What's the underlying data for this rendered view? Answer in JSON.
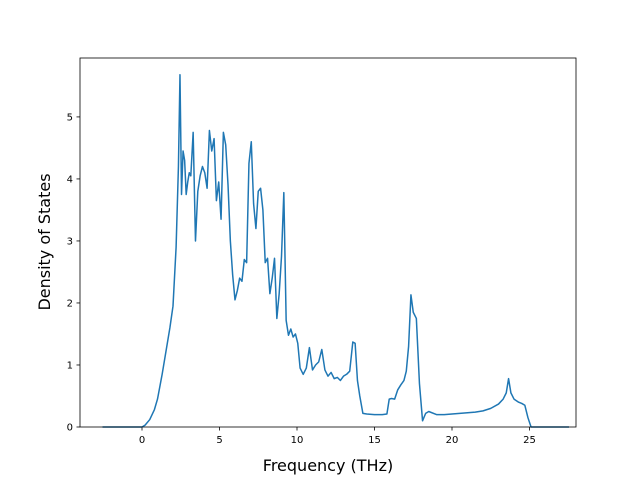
{
  "chart_data": {
    "type": "line",
    "title": "",
    "xlabel": "Frequency (THz)",
    "ylabel": "Density of States",
    "xlim": [
      -4,
      28
    ],
    "ylim": [
      0,
      5.95
    ],
    "xticks": [
      0,
      5,
      10,
      15,
      20,
      25
    ],
    "yticks": [
      0,
      1,
      2,
      3,
      4,
      5
    ],
    "grid": false,
    "legend": "none",
    "colors": {
      "line": "#1f77b4",
      "axes": "#000000",
      "background": "#ffffff"
    },
    "series": [
      {
        "x": [
          -2.5,
          -1.5,
          -0.5,
          0,
          0.2,
          0.5,
          0.8,
          1.0,
          1.3,
          1.6,
          1.8,
          2.0,
          2.2,
          2.35,
          2.45,
          2.55,
          2.65,
          2.75,
          2.85,
          2.95,
          3.05,
          3.15,
          3.3,
          3.45,
          3.6,
          3.75,
          3.9,
          4.05,
          4.2,
          4.35,
          4.5,
          4.65,
          4.8,
          4.95,
          5.1,
          5.25,
          5.4,
          5.55,
          5.7,
          5.85,
          6.0,
          6.15,
          6.3,
          6.45,
          6.6,
          6.75,
          6.9,
          7.05,
          7.2,
          7.35,
          7.5,
          7.65,
          7.8,
          7.95,
          8.1,
          8.25,
          8.4,
          8.55,
          8.7,
          8.85,
          9.0,
          9.15,
          9.3,
          9.45,
          9.6,
          9.75,
          9.9,
          10.05,
          10.2,
          10.4,
          10.6,
          10.8,
          11.0,
          11.2,
          11.4,
          11.6,
          11.8,
          12.0,
          12.2,
          12.4,
          12.6,
          12.8,
          13.0,
          13.2,
          13.4,
          13.6,
          13.75,
          13.9,
          14.05,
          14.25,
          14.5,
          15.0,
          15.5,
          15.8,
          15.95,
          16.1,
          16.3,
          16.5,
          16.7,
          16.9,
          17.05,
          17.2,
          17.35,
          17.5,
          17.7,
          17.9,
          18.1,
          18.3,
          18.5,
          19.0,
          19.5,
          20.0,
          20.5,
          21.0,
          21.5,
          22.0,
          22.5,
          23.0,
          23.3,
          23.5,
          23.65,
          23.8,
          24.0,
          24.3,
          24.5,
          24.7,
          24.9,
          25.1,
          26.0,
          27.5
        ],
        "y": [
          0,
          0,
          0,
          0,
          0.03,
          0.12,
          0.28,
          0.45,
          0.85,
          1.3,
          1.6,
          1.95,
          2.9,
          4.2,
          5.68,
          3.75,
          4.45,
          4.3,
          3.75,
          3.95,
          4.1,
          4.05,
          4.75,
          3.0,
          3.8,
          4.05,
          4.2,
          4.1,
          3.85,
          4.78,
          4.45,
          4.65,
          3.65,
          3.95,
          3.35,
          4.75,
          4.55,
          3.9,
          3.0,
          2.45,
          2.05,
          2.2,
          2.4,
          2.35,
          2.7,
          2.65,
          4.25,
          4.6,
          3.6,
          3.2,
          3.8,
          3.85,
          3.5,
          2.65,
          2.72,
          2.15,
          2.4,
          2.72,
          1.75,
          2.15,
          2.75,
          3.78,
          1.72,
          1.48,
          1.58,
          1.45,
          1.5,
          1.35,
          0.95,
          0.85,
          0.95,
          1.28,
          0.92,
          1.0,
          1.05,
          1.25,
          0.92,
          0.82,
          0.88,
          0.78,
          0.8,
          0.75,
          0.82,
          0.85,
          0.9,
          1.37,
          1.35,
          0.75,
          0.5,
          0.22,
          0.21,
          0.2,
          0.2,
          0.21,
          0.45,
          0.46,
          0.45,
          0.6,
          0.68,
          0.75,
          0.9,
          1.3,
          2.13,
          1.85,
          1.75,
          0.7,
          0.1,
          0.22,
          0.25,
          0.2,
          0.2,
          0.21,
          0.22,
          0.23,
          0.24,
          0.26,
          0.3,
          0.37,
          0.45,
          0.55,
          0.78,
          0.55,
          0.45,
          0.4,
          0.38,
          0.35,
          0.15,
          0,
          0,
          0
        ]
      }
    ]
  }
}
